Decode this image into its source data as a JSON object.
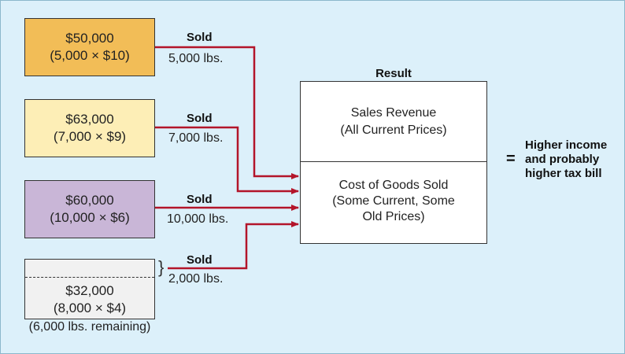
{
  "layers": [
    {
      "amount": "$50,000",
      "calc": "(5,000 × $10)",
      "sold_label": "Sold",
      "qty": "5,000 lbs.",
      "color": "#f2bd57"
    },
    {
      "amount": "$63,000",
      "calc": "(7,000 × $9)",
      "sold_label": "Sold",
      "qty": "7,000 lbs.",
      "color": "#fdeeb6"
    },
    {
      "amount": "$60,000",
      "calc": "(10,000 × $6)",
      "sold_label": "Sold",
      "qty": "10,000 lbs.",
      "color": "#c9b6d7"
    },
    {
      "amount": "$32,000",
      "calc": "(8,000 × $4)",
      "sold_label": "Sold",
      "qty": "2,000 lbs.",
      "color": "#f1f1f1"
    }
  ],
  "remaining": "(6,000 lbs. remaining)",
  "result": {
    "title": "Result",
    "revenue_line1": "Sales Revenue",
    "revenue_line2": "(All Current Prices)",
    "cogs_line1": "Cost of Goods Sold",
    "cogs_line2": "(Some Current, Some",
    "cogs_line3": "Old Prices)"
  },
  "equals": "=",
  "outcome": {
    "line1": "Higher income",
    "line2": "and probably",
    "line3": "higher tax bill"
  },
  "colors": {
    "background": "#dcf0fa",
    "arrow": "#b3152a"
  }
}
